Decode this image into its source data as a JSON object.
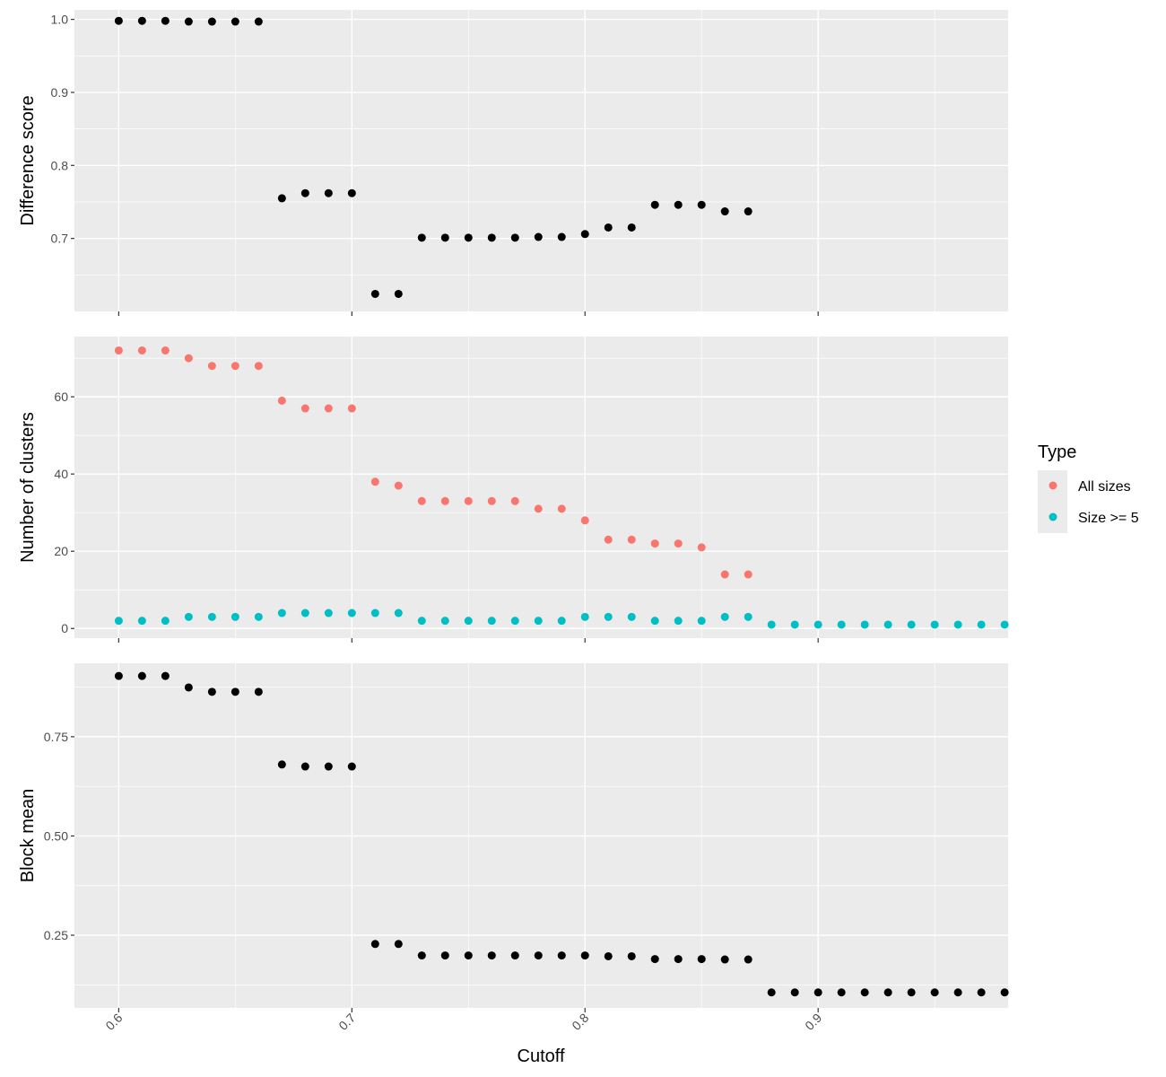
{
  "chart_data": {
    "type": "scatter",
    "xlabel": "Cutoff",
    "x_ticks": [
      "0.6",
      "0.7",
      "0.8",
      "0.9"
    ],
    "x_tick_values": [
      0.6,
      0.7,
      0.8,
      0.9
    ],
    "xlim": [
      0.581,
      0.9815
    ],
    "grid": true,
    "panels": [
      {
        "ylabel": "Difference score",
        "ylim": [
          0.6,
          1.013
        ],
        "y_ticks": [
          "0.7",
          "0.8",
          "0.9",
          "1.0"
        ],
        "y_tick_values": [
          0.7,
          0.8,
          0.9,
          1.0
        ],
        "series": [
          {
            "x": [
              0.6,
              0.61,
              0.62,
              0.63,
              0.64,
              0.65,
              0.66,
              0.67,
              0.68,
              0.69,
              0.7,
              0.71,
              0.72,
              0.73,
              0.74,
              0.75,
              0.76,
              0.77,
              0.78,
              0.79,
              0.8,
              0.81,
              0.82,
              0.83,
              0.84,
              0.85,
              0.86,
              0.87
            ],
            "y": [
              0.998,
              0.998,
              0.998,
              0.997,
              0.997,
              0.997,
              0.997,
              0.755,
              0.762,
              0.762,
              0.762,
              0.624,
              0.624,
              0.701,
              0.701,
              0.701,
              0.701,
              0.701,
              0.702,
              0.702,
              0.706,
              0.715,
              0.715,
              0.746,
              0.746,
              0.746,
              0.737,
              0.737
            ],
            "color": "#000000"
          }
        ]
      },
      {
        "ylabel": "Number of clusters",
        "ylim": [
          -2.5,
          75.6
        ],
        "y_ticks": [
          "0",
          "20",
          "40",
          "60"
        ],
        "y_tick_values": [
          0,
          20,
          40,
          60
        ],
        "series": [
          {
            "name": "All sizes",
            "color": "#F8766D",
            "x": [
              0.6,
              0.61,
              0.62,
              0.63,
              0.64,
              0.65,
              0.66,
              0.67,
              0.68,
              0.69,
              0.7,
              0.71,
              0.72,
              0.73,
              0.74,
              0.75,
              0.76,
              0.77,
              0.78,
              0.79,
              0.8,
              0.81,
              0.82,
              0.83,
              0.84,
              0.85,
              0.86,
              0.87
            ],
            "y": [
              72,
              72,
              72,
              70,
              68,
              68,
              68,
              59,
              57,
              57,
              57,
              38,
              37,
              33,
              33,
              33,
              33,
              33,
              31,
              31,
              28,
              23,
              23,
              22,
              22,
              21,
              14,
              14
            ]
          },
          {
            "name": "Size >= 5",
            "color": "#00BFC4",
            "x": [
              0.6,
              0.61,
              0.62,
              0.63,
              0.64,
              0.65,
              0.66,
              0.67,
              0.68,
              0.69,
              0.7,
              0.71,
              0.72,
              0.73,
              0.74,
              0.75,
              0.76,
              0.77,
              0.78,
              0.79,
              0.8,
              0.81,
              0.82,
              0.83,
              0.84,
              0.85,
              0.86,
              0.87,
              0.88,
              0.89,
              0.9,
              0.91,
              0.92,
              0.93,
              0.94,
              0.95,
              0.96,
              0.97,
              0.98
            ],
            "y": [
              2,
              2,
              2,
              3,
              3,
              3,
              3,
              4,
              4,
              4,
              4,
              4,
              4,
              2,
              2,
              2,
              2,
              2,
              2,
              2,
              3,
              3,
              3,
              2,
              2,
              2,
              3,
              3,
              1,
              1,
              1,
              1,
              1,
              1,
              1,
              1,
              1,
              1,
              1
            ]
          }
        ]
      },
      {
        "ylabel": "Block mean",
        "ylim": [
          0.067,
          0.935
        ],
        "y_ticks": [
          "0.25",
          "0.50",
          "0.75"
        ],
        "y_tick_values": [
          0.25,
          0.5,
          0.75
        ],
        "series": [
          {
            "x": [
              0.6,
              0.61,
              0.62,
              0.63,
              0.64,
              0.65,
              0.66,
              0.67,
              0.68,
              0.69,
              0.7,
              0.71,
              0.72,
              0.73,
              0.74,
              0.75,
              0.76,
              0.77,
              0.78,
              0.79,
              0.8,
              0.81,
              0.82,
              0.83,
              0.84,
              0.85,
              0.86,
              0.87,
              0.88,
              0.89,
              0.9,
              0.91,
              0.92,
              0.93,
              0.94,
              0.95,
              0.96,
              0.97,
              0.98
            ],
            "y": [
              0.903,
              0.903,
              0.903,
              0.874,
              0.863,
              0.863,
              0.863,
              0.68,
              0.675,
              0.675,
              0.675,
              0.228,
              0.228,
              0.199,
              0.199,
              0.199,
              0.199,
              0.199,
              0.199,
              0.199,
              0.199,
              0.197,
              0.197,
              0.19,
              0.19,
              0.19,
              0.189,
              0.189,
              0.106,
              0.106,
              0.106,
              0.106,
              0.106,
              0.106,
              0.106,
              0.106,
              0.106,
              0.106,
              0.106
            ],
            "color": "#000000"
          }
        ]
      }
    ],
    "legend": {
      "title": "Type",
      "placement": "right",
      "entries": [
        {
          "label": "All sizes",
          "color": "#F8766D"
        },
        {
          "label": "Size >= 5",
          "color": "#00BFC4"
        }
      ]
    },
    "colors": {
      "panel_background": "#EBEBEB",
      "grid_major": "#FFFFFF",
      "point_default": "#000000"
    }
  }
}
